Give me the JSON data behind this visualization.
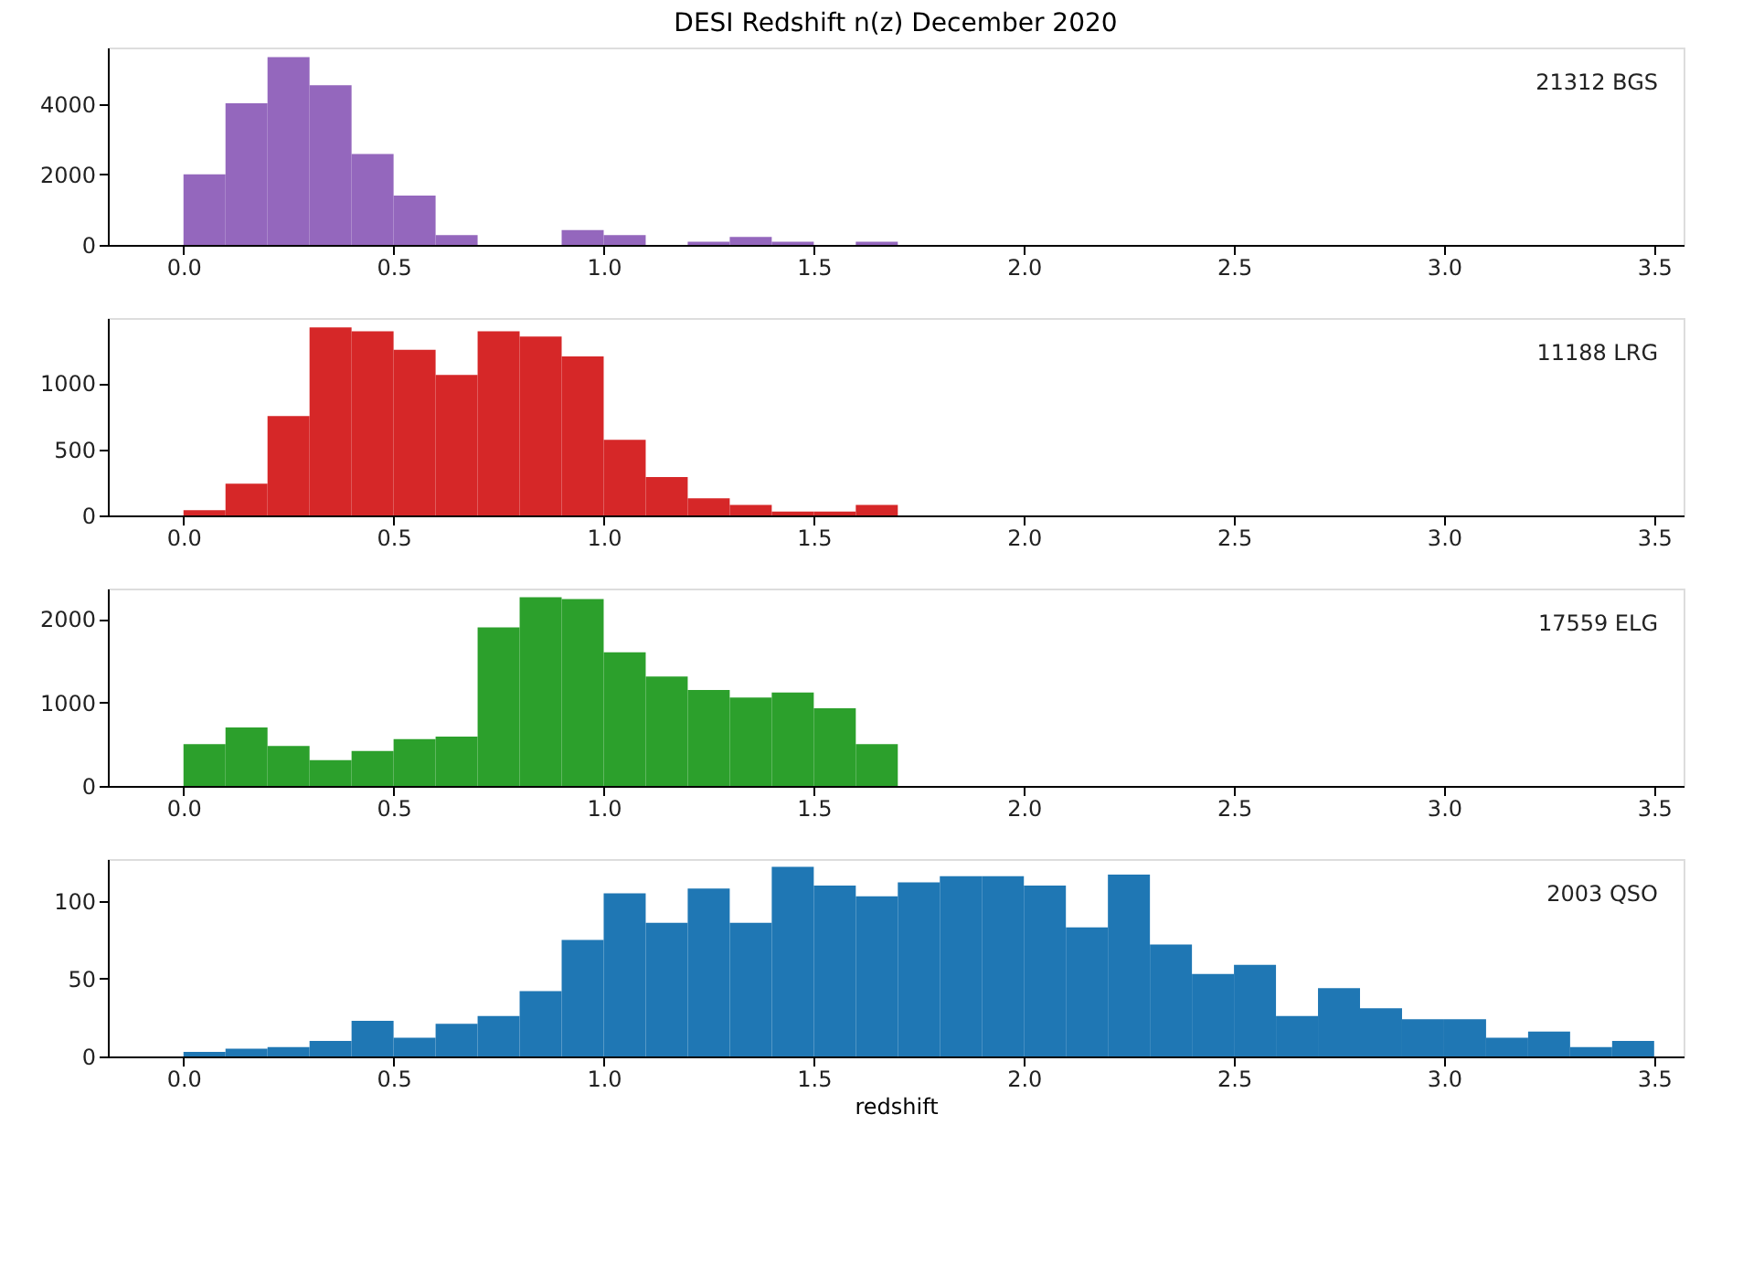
{
  "chart_data": [
    {
      "type": "histogram",
      "title": "DESI Redshift n(z) December 2020",
      "color": "#9467bd",
      "annotations": [
        "21312 BGS"
      ],
      "bins": [
        0,
        0.1,
        0.2,
        0.3,
        0.4,
        0.5,
        0.6,
        0.7,
        0.8,
        0.9,
        1.0,
        1.1,
        1.2,
        1.3,
        1.4,
        1.5,
        1.6,
        1.7
      ],
      "values": [
        2000,
        4020,
        5330,
        4530,
        2580,
        1400,
        280,
        0,
        0,
        420,
        280,
        0,
        90,
        230,
        90,
        0,
        90
      ],
      "xlim": [
        -0.18,
        3.57
      ],
      "ylim": [
        0,
        5600
      ],
      "xticks": [
        {
          "value": 0,
          "label": "0.0"
        },
        {
          "value": 0.5,
          "label": "0.5"
        },
        {
          "value": 1,
          "label": "1.0"
        },
        {
          "value": 1.5,
          "label": "1.5"
        },
        {
          "value": 2,
          "label": "2.0"
        },
        {
          "value": 2.5,
          "label": "2.5"
        },
        {
          "value": 3,
          "label": "3.0"
        },
        {
          "value": 3.5,
          "label": "3.5"
        }
      ],
      "yticks": [
        0,
        2000,
        4000
      ],
      "grid": false
    },
    {
      "type": "histogram",
      "color": "#d62728",
      "annotations": [
        "11188 LRG"
      ],
      "bins": [
        0,
        0.1,
        0.2,
        0.3,
        0.4,
        0.5,
        0.6,
        0.7,
        0.8,
        0.9,
        1.0,
        1.1,
        1.2,
        1.3,
        1.4,
        1.5,
        1.6,
        1.7
      ],
      "values": [
        40,
        240,
        750,
        1420,
        1390,
        1250,
        1060,
        1390,
        1350,
        1200,
        570,
        290,
        130,
        80,
        30,
        30,
        80
      ],
      "xlim": [
        -0.18,
        3.57
      ],
      "ylim": [
        0,
        1490
      ],
      "xticks": [
        {
          "value": 0,
          "label": "0.0"
        },
        {
          "value": 0.5,
          "label": "0.5"
        },
        {
          "value": 1,
          "label": "1.0"
        },
        {
          "value": 1.5,
          "label": "1.5"
        },
        {
          "value": 2,
          "label": "2.0"
        },
        {
          "value": 2.5,
          "label": "2.5"
        },
        {
          "value": 3,
          "label": "3.0"
        },
        {
          "value": 3.5,
          "label": "3.5"
        }
      ],
      "yticks": [
        0,
        500,
        1000
      ],
      "grid": false
    },
    {
      "type": "histogram",
      "color": "#2ca02c",
      "annotations": [
        "17559 ELG"
      ],
      "bins": [
        0,
        0.1,
        0.2,
        0.3,
        0.4,
        0.5,
        0.6,
        0.7,
        0.8,
        0.9,
        1.0,
        1.1,
        1.2,
        1.3,
        1.4,
        1.5,
        1.6,
        1.7
      ],
      "values": [
        500,
        700,
        480,
        310,
        420,
        560,
        590,
        1900,
        2260,
        2240,
        1600,
        1310,
        1150,
        1060,
        1120,
        930,
        500
      ],
      "xlim": [
        -0.18,
        3.57
      ],
      "ylim": [
        0,
        2365
      ],
      "xticks": [
        {
          "value": 0,
          "label": "0.0"
        },
        {
          "value": 0.5,
          "label": "0.5"
        },
        {
          "value": 1,
          "label": "1.0"
        },
        {
          "value": 1.5,
          "label": "1.5"
        },
        {
          "value": 2,
          "label": "2.0"
        },
        {
          "value": 2.5,
          "label": "2.5"
        },
        {
          "value": 3,
          "label": "3.0"
        },
        {
          "value": 3.5,
          "label": "3.5"
        }
      ],
      "yticks": [
        0,
        1000,
        2000
      ],
      "grid": false
    },
    {
      "type": "histogram",
      "color": "#1f77b4",
      "annotations": [
        "2003 QSO"
      ],
      "xlabel": "redshift",
      "bins": [
        0,
        0.1,
        0.2,
        0.3,
        0.4,
        0.5,
        0.6,
        0.7,
        0.8,
        0.9,
        1.0,
        1.1,
        1.2,
        1.3,
        1.4,
        1.5,
        1.6,
        1.7,
        1.8,
        1.9,
        2.0,
        2.1,
        2.2,
        2.3,
        2.4,
        2.5,
        2.6,
        2.7,
        2.8,
        2.9,
        3.0,
        3.1,
        3.2,
        3.3,
        3.4,
        3.5
      ],
      "values": [
        3,
        5,
        6,
        10,
        23,
        12,
        21,
        26,
        42,
        75,
        105,
        86,
        108,
        86,
        122,
        110,
        103,
        112,
        116,
        116,
        110,
        83,
        117,
        72,
        53,
        59,
        26,
        44,
        31,
        24,
        24,
        12,
        16,
        6,
        10
      ],
      "xlim": [
        -0.18,
        3.57
      ],
      "ylim": [
        0,
        127
      ],
      "xticks": [
        {
          "value": 0,
          "label": "0.0"
        },
        {
          "value": 0.5,
          "label": "0.5"
        },
        {
          "value": 1,
          "label": "1.0"
        },
        {
          "value": 1.5,
          "label": "1.5"
        },
        {
          "value": 2,
          "label": "2.0"
        },
        {
          "value": 2.5,
          "label": "2.5"
        },
        {
          "value": 3,
          "label": "3.0"
        },
        {
          "value": 3.5,
          "label": "3.5"
        }
      ],
      "yticks": [
        0,
        50,
        100
      ],
      "grid": false
    }
  ]
}
